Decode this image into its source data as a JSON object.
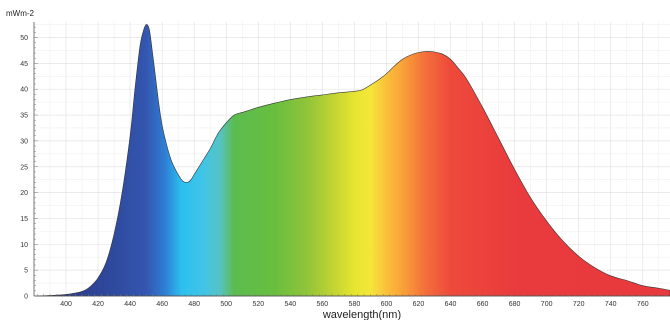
{
  "chart_data": {
    "type": "area",
    "title": "",
    "ylabel": "mWm-2",
    "xlabel": "wavelength(nm)",
    "xlim": [
      380,
      777
    ],
    "ylim": [
      0,
      53
    ],
    "grid": true,
    "x_ticks": [
      400,
      420,
      440,
      460,
      480,
      500,
      520,
      540,
      560,
      580,
      600,
      620,
      640,
      660,
      680,
      700,
      720,
      740,
      760
    ],
    "y_ticks": [
      0,
      5,
      10,
      15,
      20,
      25,
      30,
      35,
      40,
      45,
      50
    ],
    "fill": "visible-spectrum gradient",
    "series": [
      {
        "x": [
          380,
          390,
          400,
          410,
          415,
          420,
          425,
          430,
          435,
          440,
          443,
          446,
          448,
          450,
          452,
          454,
          456,
          458,
          460,
          463,
          466,
          470,
          473,
          476,
          478,
          480,
          483,
          486,
          490,
          495,
          500,
          505,
          510,
          515,
          520,
          530,
          540,
          550,
          560,
          570,
          580,
          585,
          590,
          595,
          600,
          605,
          610,
          615,
          620,
          625,
          630,
          635,
          640,
          645,
          650,
          660,
          670,
          680,
          690,
          700,
          710,
          720,
          730,
          740,
          750,
          760,
          770,
          777
        ],
        "y": [
          0,
          0.1,
          0.3,
          0.9,
          1.8,
          3.5,
          6.5,
          12,
          20,
          31,
          40,
          48,
          51,
          52.5,
          51.5,
          47,
          42,
          37,
          33,
          29,
          26,
          23.5,
          22.2,
          22,
          22.5,
          23.5,
          25,
          26.5,
          28.5,
          31.5,
          33.5,
          35,
          35.5,
          36,
          36.5,
          37.3,
          38,
          38.5,
          38.9,
          39.3,
          39.6,
          39.9,
          40.8,
          41.8,
          43,
          44.5,
          45.8,
          46.6,
          47.1,
          47.3,
          47.2,
          46.8,
          45.8,
          44,
          42,
          36.5,
          30.5,
          24.5,
          19,
          14.5,
          10.7,
          7.7,
          5.5,
          3.9,
          3,
          2,
          1.5,
          1.1
        ]
      }
    ]
  }
}
